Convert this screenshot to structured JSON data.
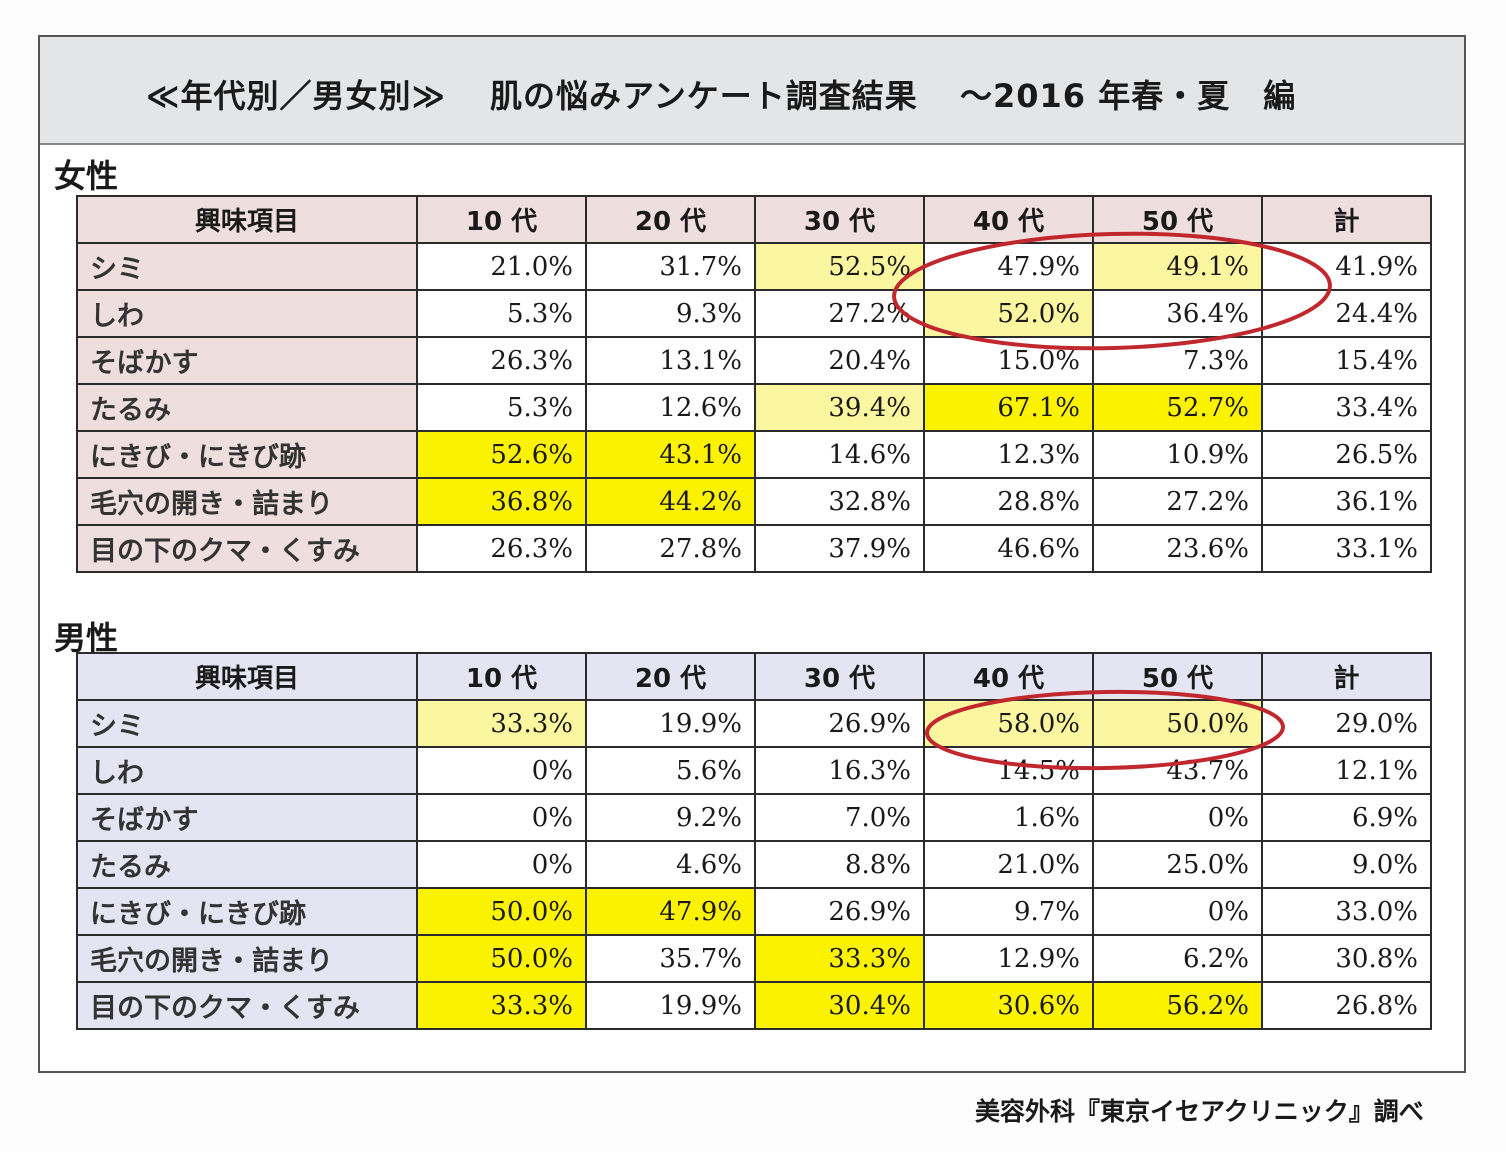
{
  "title": {
    "left": "≪年代別／男女別≫",
    "center": "肌の悩みアンケート調査結果",
    "right": "～2016 年春・夏　編"
  },
  "female": {
    "label": "女性",
    "headers": [
      "興味項目",
      "10 代",
      "20 代",
      "30 代",
      "40 代",
      "50 代",
      "計"
    ],
    "rows": [
      {
        "item": "シミ",
        "values": [
          "21.0%",
          "31.7%",
          "52.5%",
          "47.9%",
          "49.1%",
          "41.9%"
        ],
        "highlight": [
          0,
          0,
          1,
          0,
          1,
          0
        ]
      },
      {
        "item": "しわ",
        "values": [
          "5.3%",
          "9.3%",
          "27.2%",
          "52.0%",
          "36.4%",
          "24.4%"
        ],
        "highlight": [
          0,
          0,
          0,
          1,
          0,
          0
        ]
      },
      {
        "item": "そばかす",
        "values": [
          "26.3%",
          "13.1%",
          "20.4%",
          "15.0%",
          "7.3%",
          "15.4%"
        ],
        "highlight": [
          0,
          0,
          0,
          0,
          0,
          0
        ]
      },
      {
        "item": "たるみ",
        "values": [
          "5.3%",
          "12.6%",
          "39.4%",
          "67.1%",
          "52.7%",
          "33.4%"
        ],
        "highlight": [
          0,
          0,
          1,
          1,
          1,
          0
        ]
      },
      {
        "item": "にきび・にきび跡",
        "values": [
          "52.6%",
          "43.1%",
          "14.6%",
          "12.3%",
          "10.9%",
          "26.5%"
        ],
        "highlight": [
          1,
          1,
          0,
          0,
          0,
          0
        ]
      },
      {
        "item": "毛穴の開き・詰まり",
        "values": [
          "36.8%",
          "44.2%",
          "32.8%",
          "28.8%",
          "27.2%",
          "36.1%"
        ],
        "highlight": [
          1,
          1,
          0,
          0,
          0,
          0
        ]
      },
      {
        "item": "目の下のクマ・くすみ",
        "values": [
          "26.3%",
          "27.8%",
          "37.9%",
          "46.6%",
          "23.6%",
          "33.1%"
        ],
        "highlight": [
          0,
          0,
          0,
          0,
          0,
          0
        ]
      }
    ]
  },
  "male": {
    "label": "男性",
    "headers": [
      "興味項目",
      "10 代",
      "20 代",
      "30 代",
      "40 代",
      "50 代",
      "計"
    ],
    "rows": [
      {
        "item": "シミ",
        "values": [
          "33.3%",
          "19.9%",
          "26.9%",
          "58.0%",
          "50.0%",
          "29.0%"
        ],
        "highlight": [
          1,
          0,
          0,
          1,
          1,
          0
        ]
      },
      {
        "item": "しわ",
        "values": [
          "0%",
          "5.6%",
          "16.3%",
          "14.5%",
          "43.7%",
          "12.1%"
        ],
        "highlight": [
          0,
          0,
          0,
          0,
          0,
          0
        ]
      },
      {
        "item": "そばかす",
        "values": [
          "0%",
          "9.2%",
          "7.0%",
          "1.6%",
          "0%",
          "6.9%"
        ],
        "highlight": [
          0,
          0,
          0,
          0,
          0,
          0
        ]
      },
      {
        "item": "たるみ",
        "values": [
          "0%",
          "4.6%",
          "8.8%",
          "21.0%",
          "25.0%",
          "9.0%"
        ],
        "highlight": [
          0,
          0,
          0,
          0,
          0,
          0
        ]
      },
      {
        "item": "にきび・にきび跡",
        "values": [
          "50.0%",
          "47.9%",
          "26.9%",
          "9.7%",
          "0%",
          "33.0%"
        ],
        "highlight": [
          1,
          1,
          0,
          0,
          0,
          0
        ]
      },
      {
        "item": "毛穴の開き・詰まり",
        "values": [
          "50.0%",
          "35.7%",
          "33.3%",
          "12.9%",
          "6.2%",
          "30.8%"
        ],
        "highlight": [
          1,
          0,
          1,
          0,
          0,
          0
        ]
      },
      {
        "item": "目の下のクマ・くすみ",
        "values": [
          "33.3%",
          "19.9%",
          "30.4%",
          "30.6%",
          "56.2%",
          "26.8%"
        ],
        "highlight": [
          1,
          0,
          1,
          1,
          1,
          0
        ]
      }
    ]
  },
  "credit": "美容外科『東京イセアクリニック』調べ",
  "colors": {
    "highlight": "#fbf200",
    "female_header_bg": "#efdede",
    "male_header_bg": "#e4e4f2",
    "annotation_circle": "#c0282d"
  }
}
